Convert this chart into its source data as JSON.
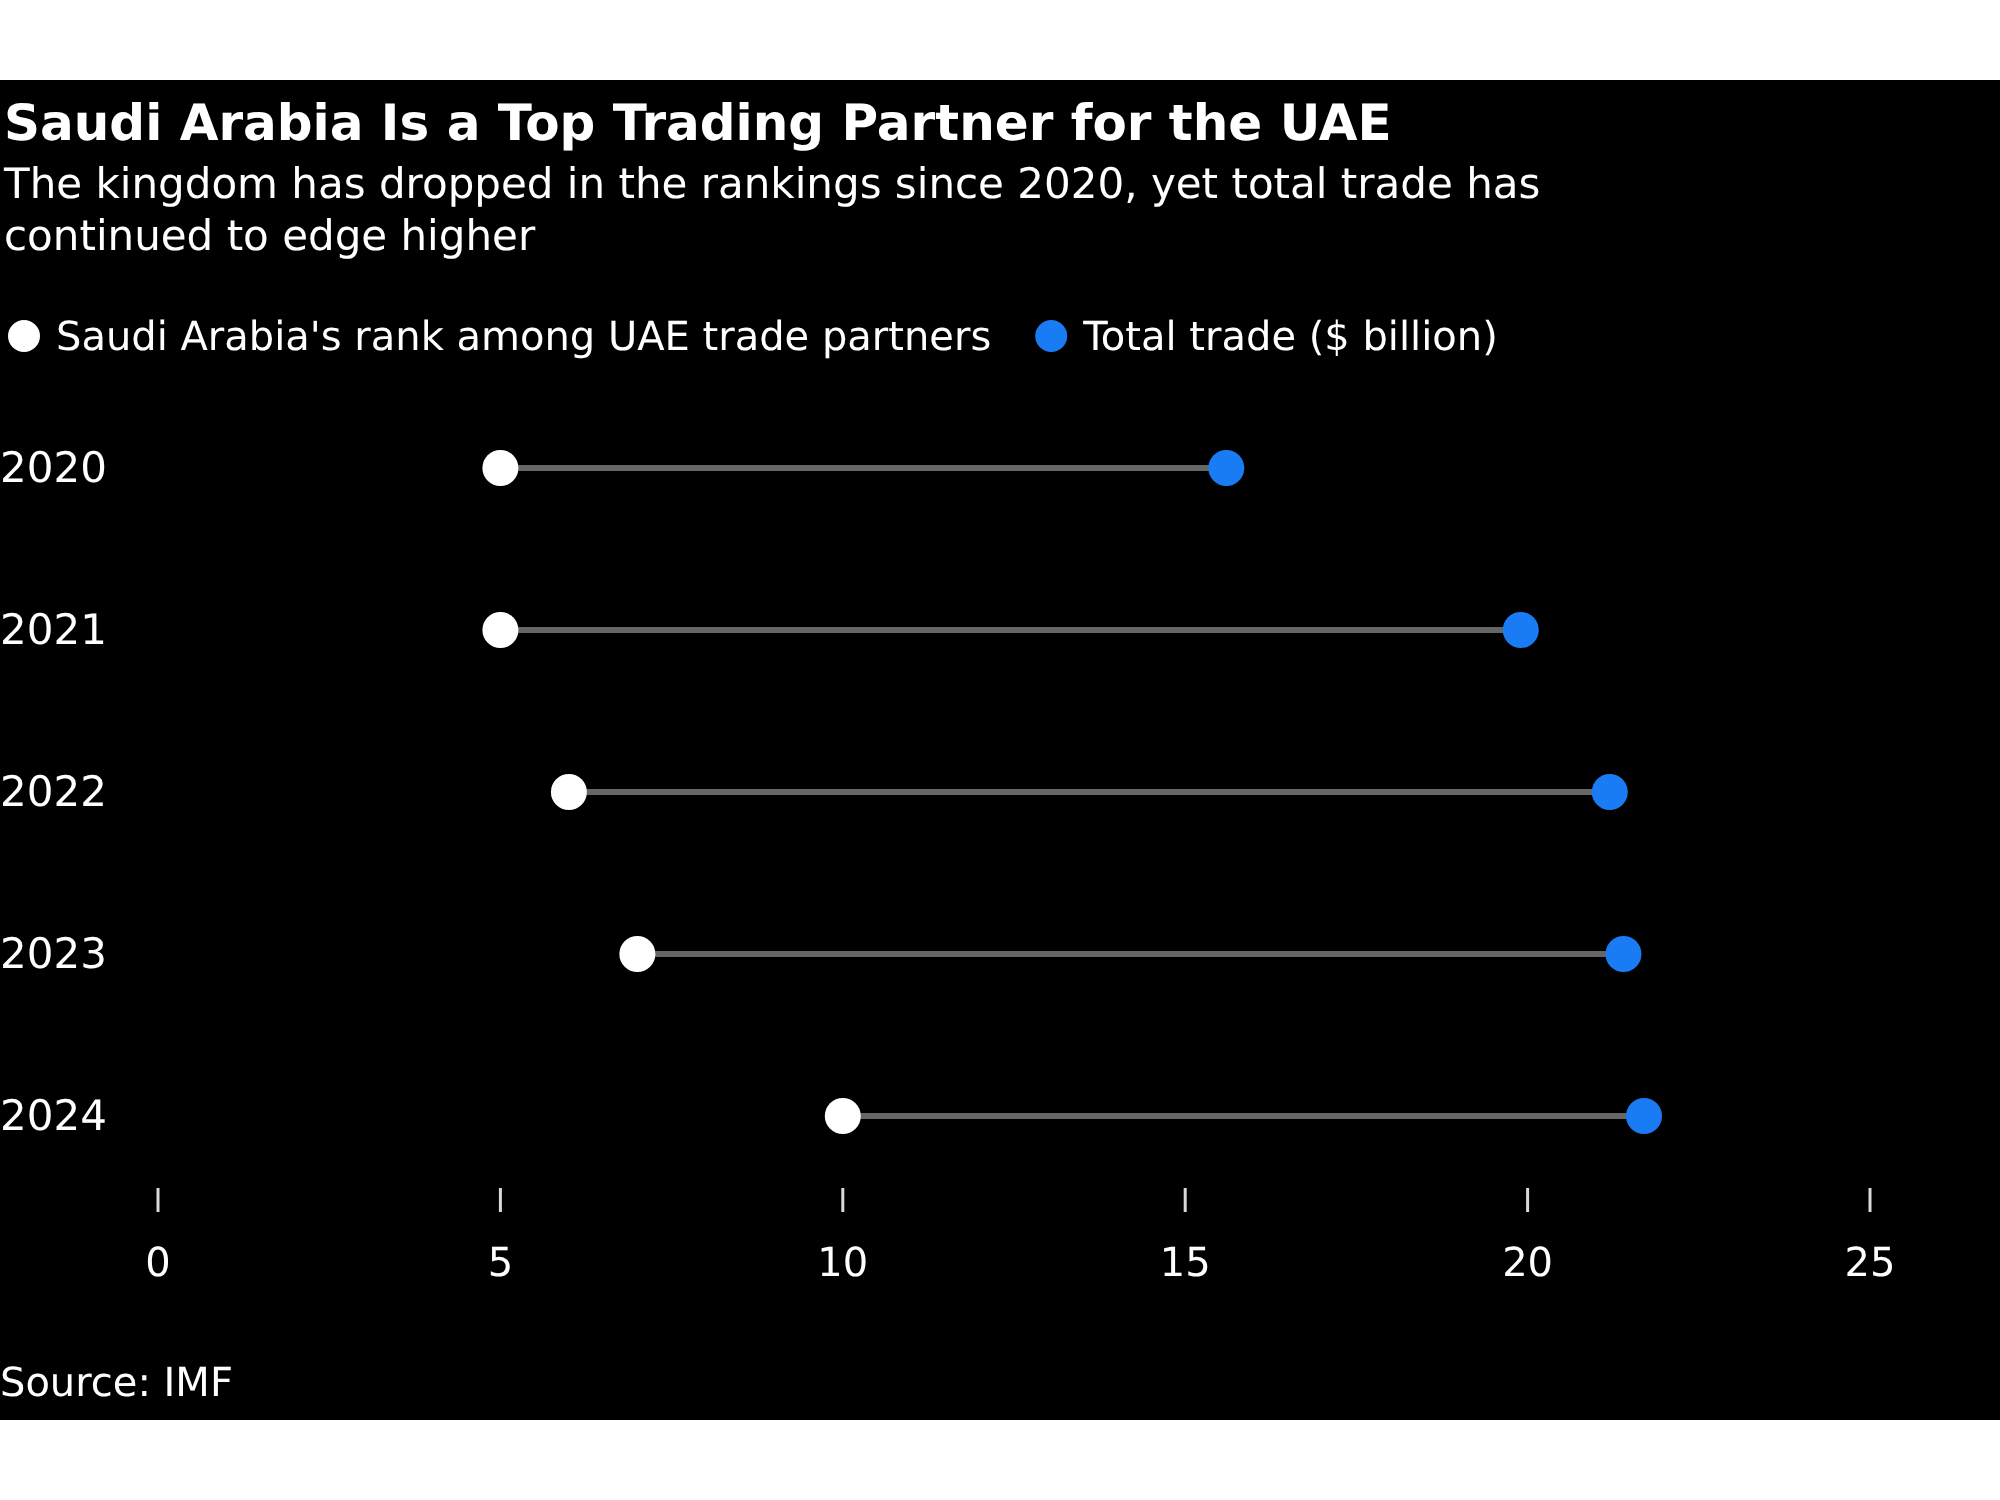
{
  "chart_data": {
    "type": "scatter",
    "title": "Saudi Arabia Is a Top Trading Partner for the UAE",
    "subtitle": "The kingdom has dropped in the rankings since 2020, yet total trade has continued to edge higher",
    "orientation": "horizontal",
    "categories": [
      "2020",
      "2021",
      "2022",
      "2023",
      "2024"
    ],
    "series": [
      {
        "name": "Saudi Arabia's rank among UAE trade partners",
        "color": "#ffffff",
        "values": [
          5,
          5,
          6,
          7,
          10
        ]
      },
      {
        "name": "Total trade ($ billion)",
        "color": "#1a7cf5",
        "values": [
          15.6,
          19.9,
          21.2,
          21.4,
          21.7
        ]
      }
    ],
    "xlim": [
      0,
      25
    ],
    "xticks": [
      0,
      5,
      10,
      15,
      20,
      25
    ],
    "grid": false,
    "legend": "top left",
    "marker": "circle",
    "annotations": [
      "Source: IMF"
    ]
  }
}
